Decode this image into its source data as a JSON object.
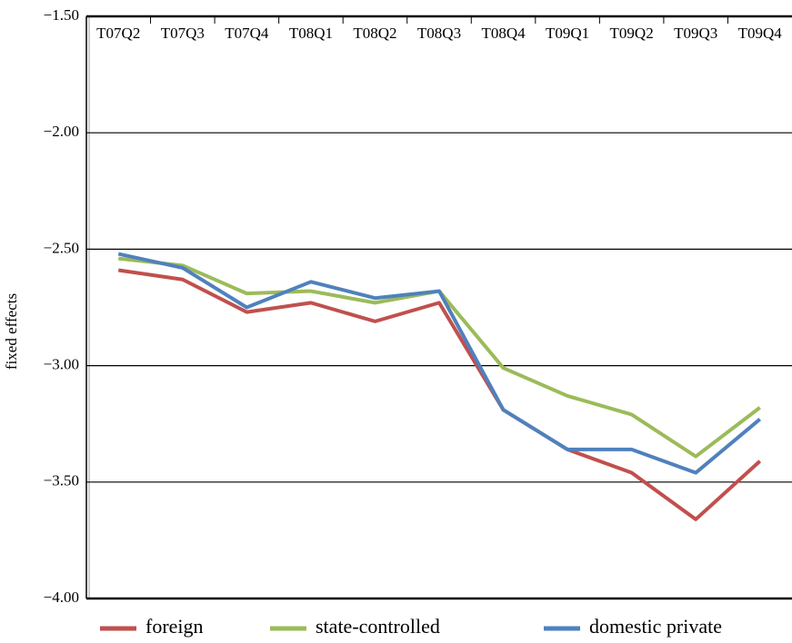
{
  "chart_data": {
    "type": "line",
    "y_label": "fixed effects",
    "categories": [
      "T07Q2",
      "T07Q3",
      "T07Q4",
      "T08Q1",
      "T08Q2",
      "T08Q3",
      "T08Q4",
      "T09Q1",
      "T09Q2",
      "T09Q3",
      "T09Q4"
    ],
    "series": [
      {
        "name": "foreign",
        "color": "#c0504d",
        "values": [
          -2.59,
          -2.63,
          -2.77,
          -2.73,
          -2.81,
          -2.73,
          -3.19,
          -3.36,
          -3.46,
          -3.66,
          -3.41
        ]
      },
      {
        "name": "state-controlled",
        "color": "#9bbb59",
        "values": [
          -2.54,
          -2.57,
          -2.69,
          -2.68,
          -2.73,
          -2.68,
          -3.01,
          -3.13,
          -3.21,
          -3.39,
          -3.18
        ]
      },
      {
        "name": "domestic private",
        "color": "#4f81bd",
        "values": [
          -2.52,
          -2.58,
          -2.75,
          -2.64,
          -2.71,
          -2.68,
          -3.19,
          -3.36,
          -3.36,
          -3.46,
          -3.23
        ]
      }
    ],
    "ylim": [
      -4.0,
      -1.5
    ],
    "yticks": [
      {
        "value": -1.5,
        "label": "−1.50"
      },
      {
        "value": -2.0,
        "label": "−2.00"
      },
      {
        "value": -2.5,
        "label": "−2.50"
      },
      {
        "value": -3.0,
        "label": "−3.00"
      },
      {
        "value": -3.5,
        "label": "−3.50"
      },
      {
        "value": -4.0,
        "label": "−4.00"
      }
    ],
    "grid": true,
    "legend": "bottom"
  }
}
